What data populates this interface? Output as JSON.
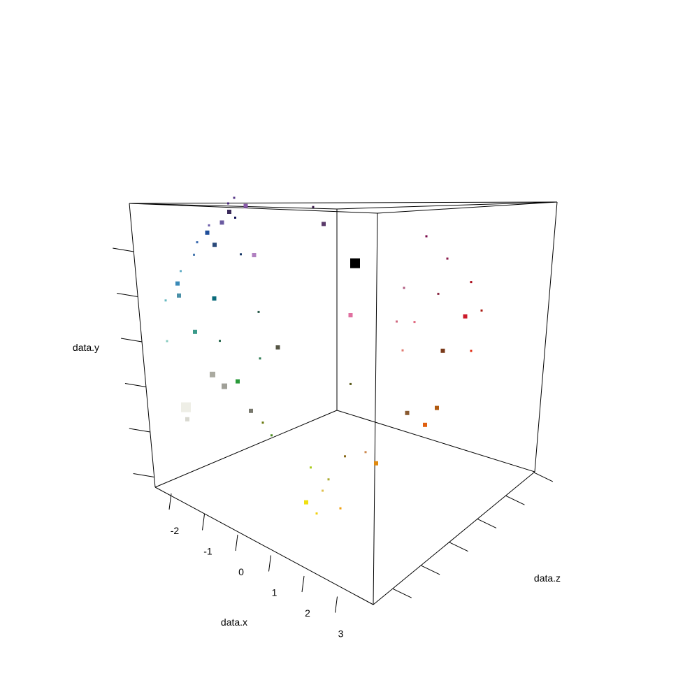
{
  "chart_data": {
    "type": "scatter",
    "dimensions": 3,
    "title": "",
    "xlabel": "data.x",
    "ylabel": "data.y",
    "zlabel": "data.z",
    "x_ticks": [
      "-2",
      "-1",
      "0",
      "1",
      "2",
      "3"
    ],
    "y_ticks_count": 6,
    "z_ticks_count": 6,
    "marker": "square",
    "grid": false,
    "legend": "none",
    "points": [
      {
        "x": -2.3,
        "y": 2.8,
        "z": -1.5,
        "color": "#4a2a7a",
        "size": 1
      },
      {
        "x": -2.2,
        "y": 2.9,
        "z": -1.4,
        "color": "#5a3a8a",
        "size": 1
      },
      {
        "x": -1.9,
        "y": 2.7,
        "z": -1.6,
        "color": "#3a2a5a",
        "size": 2
      },
      {
        "x": -1.7,
        "y": 2.8,
        "z": -1.3,
        "color": "#8a5aaa",
        "size": 2
      },
      {
        "x": -2.1,
        "y": 2.5,
        "z": -1.7,
        "color": "#6a5aa0",
        "size": 2
      },
      {
        "x": -2.7,
        "y": 2.4,
        "z": -1.8,
        "color": "#6a5aa8",
        "size": 1
      },
      {
        "x": -2.5,
        "y": 2.3,
        "z": -1.9,
        "color": "#1f4e9a",
        "size": 2
      },
      {
        "x": -2.9,
        "y": 2.1,
        "z": -2.0,
        "color": "#3a6ab0",
        "size": 1
      },
      {
        "x": -2.3,
        "y": 2.1,
        "z": -1.8,
        "color": "#2a4a7a",
        "size": 2
      },
      {
        "x": -1.8,
        "y": 2.6,
        "z": -1.5,
        "color": "#111155",
        "size": 1
      },
      {
        "x": -1.4,
        "y": 2.0,
        "z": -1.5,
        "color": "#1a3a6a",
        "size": 1
      },
      {
        "x": -1.1,
        "y": 2.0,
        "z": -1.3,
        "color": "#b080c0",
        "size": 2
      },
      {
        "x": -2.8,
        "y": 1.9,
        "z": -2.1,
        "color": "#4a7ab0",
        "size": 1
      },
      {
        "x": -3.1,
        "y": 1.6,
        "z": -2.3,
        "color": "#66b0c8",
        "size": 1
      },
      {
        "x": -3.0,
        "y": 1.4,
        "z": -2.4,
        "color": "#3a8ab8",
        "size": 2
      },
      {
        "x": -2.9,
        "y": 1.2,
        "z": -2.4,
        "color": "#4a90a8",
        "size": 2
      },
      {
        "x": -3.2,
        "y": 1.1,
        "z": -2.6,
        "color": "#66b8c0",
        "size": 1
      },
      {
        "x": -2.0,
        "y": 1.2,
        "z": -1.9,
        "color": "#0a6a7a",
        "size": 2
      },
      {
        "x": -1.1,
        "y": 1.0,
        "z": -1.2,
        "color": "#2a5a4a",
        "size": 1
      },
      {
        "x": -2.4,
        "y": 0.6,
        "z": -2.2,
        "color": "#3a9a8a",
        "size": 2
      },
      {
        "x": -3.1,
        "y": 0.4,
        "z": -2.6,
        "color": "#88ccc0",
        "size": 1
      },
      {
        "x": -1.6,
        "y": 0.5,
        "z": -1.9,
        "color": "#2a6a50",
        "size": 1
      },
      {
        "x": -1.0,
        "y": 0.2,
        "z": -1.2,
        "color": "#2a7a50",
        "size": 1
      },
      {
        "x": -0.7,
        "y": 0.4,
        "z": -0.9,
        "color": "#555544",
        "size": 2
      },
      {
        "x": -1.8,
        "y": -0.1,
        "z": -2.0,
        "color": "#aaaaa0",
        "size": 3
      },
      {
        "x": -1.6,
        "y": -0.3,
        "z": -1.8,
        "color": "#a0a098",
        "size": 3
      },
      {
        "x": -1.3,
        "y": -0.2,
        "z": -1.6,
        "color": "#2a9a3a",
        "size": 2
      },
      {
        "x": -2.4,
        "y": -0.7,
        "z": -2.4,
        "color": "#eeeee6",
        "size": 4
      },
      {
        "x": -2.3,
        "y": -0.9,
        "z": -2.4,
        "color": "#d8d8d0",
        "size": 2
      },
      {
        "x": -1.0,
        "y": -0.7,
        "z": -1.4,
        "color": "#77776c",
        "size": 2
      },
      {
        "x": -0.8,
        "y": -0.9,
        "z": -1.2,
        "color": "#6a7a10",
        "size": 1
      },
      {
        "x": -0.5,
        "y": -1.1,
        "z": -1.1,
        "color": "#4a8a20",
        "size": 1
      },
      {
        "x": 0.2,
        "y": 2.9,
        "z": -0.4,
        "color": "#3a1a4a",
        "size": 1
      },
      {
        "x": 0.3,
        "y": 2.6,
        "z": -0.2,
        "color": "#5a3a6a",
        "size": 2
      },
      {
        "x": 0.6,
        "y": 1.9,
        "z": 0.4,
        "color": "#000000",
        "size": 4
      },
      {
        "x": 1.8,
        "y": 2.4,
        "z": 1.6,
        "color": "#7a0a4a",
        "size": 1
      },
      {
        "x": 2.0,
        "y": 2.0,
        "z": 2.0,
        "color": "#8a1a4a",
        "size": 1
      },
      {
        "x": 1.5,
        "y": 1.5,
        "z": 1.2,
        "color": "#b05a80",
        "size": 1
      },
      {
        "x": 2.0,
        "y": 1.4,
        "z": 1.8,
        "color": "#8a2a44",
        "size": 1
      },
      {
        "x": 2.4,
        "y": 1.6,
        "z": 2.4,
        "color": "#aa0a1a",
        "size": 1
      },
      {
        "x": 2.3,
        "y": 1.0,
        "z": 2.3,
        "color": "#cc1a2a",
        "size": 2
      },
      {
        "x": 2.5,
        "y": 1.1,
        "z": 2.6,
        "color": "#aa1a10",
        "size": 1
      },
      {
        "x": 0.6,
        "y": 1.0,
        "z": 0.3,
        "color": "#e070a0",
        "size": 2
      },
      {
        "x": 1.3,
        "y": 0.9,
        "z": 1.1,
        "color": "#d06a80",
        "size": 1
      },
      {
        "x": 1.6,
        "y": 0.9,
        "z": 1.4,
        "color": "#e06a80",
        "size": 1
      },
      {
        "x": 1.4,
        "y": 0.4,
        "z": 1.2,
        "color": "#e07a70",
        "size": 1
      },
      {
        "x": 2.0,
        "y": 0.4,
        "z": 1.9,
        "color": "#7a3a1a",
        "size": 2
      },
      {
        "x": 2.4,
        "y": 0.4,
        "z": 2.4,
        "color": "#e02a10",
        "size": 1
      },
      {
        "x": 0.6,
        "y": -0.2,
        "z": 0.3,
        "color": "#5a5a1a",
        "size": 1
      },
      {
        "x": 1.4,
        "y": -0.7,
        "z": 1.3,
        "color": "#8a5a30",
        "size": 2
      },
      {
        "x": 1.9,
        "y": -0.6,
        "z": 1.8,
        "color": "#b05a10",
        "size": 2
      },
      {
        "x": 1.7,
        "y": -0.9,
        "z": 1.6,
        "color": "#e06010",
        "size": 2
      },
      {
        "x": 0.7,
        "y": -1.4,
        "z": 0.6,
        "color": "#cc8a50",
        "size": 1
      },
      {
        "x": 0.8,
        "y": -1.6,
        "z": 0.8,
        "color": "#e08a10",
        "size": 2
      },
      {
        "x": 0.2,
        "y": -1.5,
        "z": 0.3,
        "color": "#8a6a1a",
        "size": 1
      },
      {
        "x": -0.3,
        "y": -1.7,
        "z": -0.3,
        "color": "#aacc20",
        "size": 1
      },
      {
        "x": 0.0,
        "y": -1.9,
        "z": 0.0,
        "color": "#aaaa30",
        "size": 1
      },
      {
        "x": -0.1,
        "y": -2.1,
        "z": -0.1,
        "color": "#e0c050",
        "size": 1
      },
      {
        "x": -0.3,
        "y": -2.3,
        "z": -0.4,
        "color": "#f0e010",
        "size": 2
      },
      {
        "x": 0.2,
        "y": -2.4,
        "z": 0.2,
        "color": "#f0a010",
        "size": 1
      },
      {
        "x": -0.2,
        "y": -2.5,
        "z": -0.2,
        "color": "#f0d010",
        "size": 1
      }
    ]
  }
}
